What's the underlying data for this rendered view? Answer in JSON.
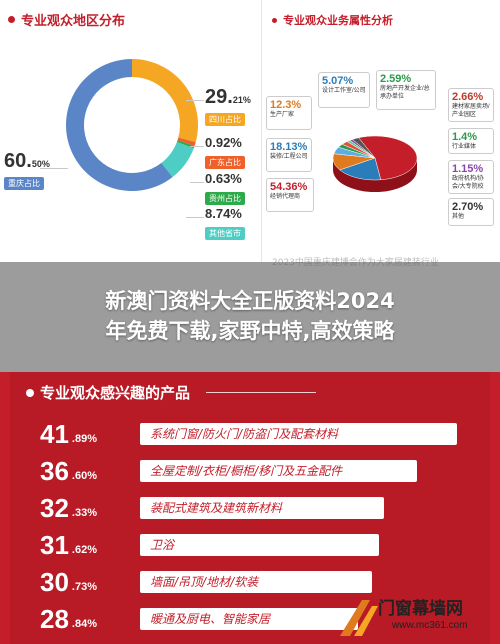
{
  "left_panel": {
    "title": "专业观众地区分布"
  },
  "right_panel": {
    "title": "专业观众业务属性分析",
    "boxes": [
      {
        "pct": "5.07%",
        "cap": "设计工作室/公司",
        "color": "#2a7db8"
      },
      {
        "pct": "2.59%",
        "cap": "房地产开发企业/总承办单位",
        "color": "#2a9a4a"
      },
      {
        "pct": "12.3%",
        "cap": "生产厂家",
        "color": "#e07a1f"
      },
      {
        "pct": "2.66%",
        "cap": "建材家居卖场/产业园区",
        "color": "#c0392b"
      },
      {
        "pct": "1.4%",
        "cap": "行业媒体",
        "color": "#2a9a4a"
      },
      {
        "pct": "18.13%",
        "cap": "装修/工程公司",
        "color": "#2a7db8"
      },
      {
        "pct": "1.15%",
        "cap": "政府机构/协会/大专院校",
        "color": "#8e44ad"
      },
      {
        "pct": "54.36%",
        "cap": "经销代理商",
        "color": "#c41e2a"
      },
      {
        "pct": "2.70%",
        "cap": "其他",
        "color": "#333333"
      }
    ],
    "faded_caption": "2023中国重庆建博会作为大家居建装行业"
  },
  "banner": {
    "line1": "新澳门资料大全正版资料2024",
    "line2": "年免费下载,家野中特,高效策略"
  },
  "bottom": {
    "title": "专业观众感兴趣的产品"
  },
  "logo": {
    "name": "门窗幕墙网",
    "url": "www.mc361.com"
  },
  "chart_data": [
    {
      "type": "pie",
      "title": "专业观众地区分布",
      "categories": [
        "重庆占比",
        "四川占比",
        "广东占比",
        "贵州占比",
        "其他省市"
      ],
      "values": [
        60.5,
        29.21,
        0.92,
        0.63,
        8.74
      ],
      "labels": [
        {
          "big": "60.",
          "dec": "50%",
          "tag": "重庆占比"
        },
        {
          "big": "29.",
          "dec": "21%",
          "tag": "四川占比"
        },
        {
          "big": "0.92%",
          "dec": "",
          "tag": "广东占比"
        },
        {
          "big": "0.63%",
          "dec": "",
          "tag": "贵州占比"
        },
        {
          "big": "8.74%",
          "dec": "",
          "tag": "其他省市"
        }
      ],
      "colors": [
        "#5a86c8",
        "#f5a623",
        "#f0602a",
        "#2eaa4a",
        "#4ecdc4"
      ]
    },
    {
      "type": "pie",
      "categories": [
        "经销代理商",
        "装修/工程公司",
        "生产厂家",
        "设计工作室/公司",
        "房地产开发企业/总承办单位",
        "建材家居卖场/产业园区",
        "行业媒体",
        "政府机构/协会/大专院校",
        "其他"
      ],
      "values": [
        54.36,
        18.13,
        12.3,
        5.07,
        2.59,
        2.66,
        1.4,
        1.15,
        2.7
      ],
      "colors": [
        "#c41e2a",
        "#2a7db8",
        "#e07a1f",
        "#5dade2",
        "#2a9a4a",
        "#e74c3c",
        "#58d68d",
        "#8e44ad",
        "#555555"
      ]
    },
    {
      "type": "bar",
      "title": "专业观众感兴趣的产品",
      "categories": [
        "系统门窗/防火门/防盗门及配套材料",
        "全屋定制/衣柜/橱柜/移门及五金配件",
        "装配式建筑及建筑新材料",
        "卫浴",
        "墙面/吊顶/地材/软装",
        "暖通及厨电、智能家居"
      ],
      "values": [
        41.89,
        36.6,
        32.33,
        31.62,
        30.73,
        28.84
      ],
      "labels": [
        {
          "big": "41",
          "dec": ".89%"
        },
        {
          "big": "36",
          "dec": ".60%"
        },
        {
          "big": "32",
          "dec": ".33%"
        },
        {
          "big": "31",
          "dec": ".62%"
        },
        {
          "big": "30",
          "dec": ".73%"
        },
        {
          "big": "28",
          "dec": ".84%"
        }
      ],
      "bar_color": "#ffffff",
      "text_color": "#c41e2a"
    }
  ]
}
